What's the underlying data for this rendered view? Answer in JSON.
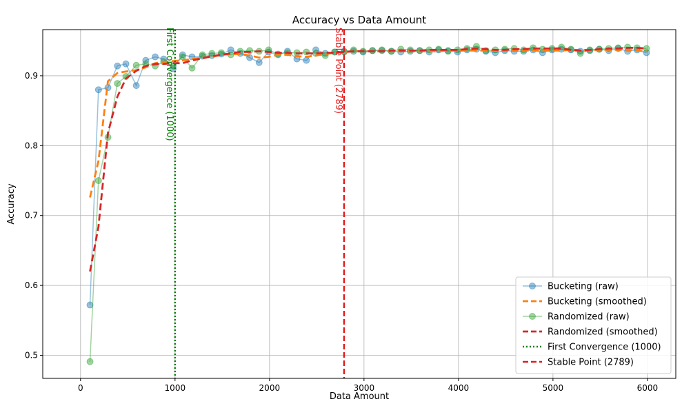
{
  "chart_data": {
    "type": "line",
    "title": "Accuracy vs Data Amount",
    "xlabel": "Data Amount",
    "ylabel": "Accuracy",
    "xlim": [
      -400,
      6300
    ],
    "ylim": [
      0.467,
      0.966
    ],
    "xticks": [
      0,
      1000,
      2000,
      3000,
      4000,
      5000,
      6000
    ],
    "yticks": [
      0.5,
      0.6,
      0.7,
      0.8,
      0.9
    ],
    "grid": true,
    "legend_position": "lower-right",
    "series": [
      {
        "name": "Bucketing (raw)",
        "style": "raw",
        "color": "#1f77b4",
        "x": [
          100,
          190,
          290,
          390,
          480,
          590,
          690,
          790,
          880,
          980,
          1080,
          1180,
          1290,
          1390,
          1490,
          1590,
          1690,
          1790,
          1890,
          1990,
          2090,
          2190,
          2290,
          2390,
          2490,
          2590,
          2690,
          2790,
          2890,
          2990,
          3090,
          3190,
          3290,
          3390,
          3490,
          3590,
          3690,
          3790,
          3890,
          3990,
          4090,
          4190,
          4290,
          4390,
          4490,
          4590,
          4690,
          4790,
          4890,
          4990,
          5090,
          5190,
          5290,
          5390,
          5490,
          5590,
          5690,
          5790,
          5890,
          5990
        ],
        "y": [
          0.572,
          0.88,
          0.883,
          0.914,
          0.917,
          0.886,
          0.922,
          0.927,
          0.924,
          0.91,
          0.93,
          0.927,
          0.928,
          0.929,
          0.931,
          0.937,
          0.932,
          0.926,
          0.919,
          0.934,
          0.93,
          0.935,
          0.924,
          0.922,
          0.937,
          0.932,
          0.934,
          0.935,
          0.935,
          0.934,
          0.936,
          0.936,
          0.935,
          0.934,
          0.935,
          0.936,
          0.934,
          0.937,
          0.936,
          0.934,
          0.937,
          0.938,
          0.935,
          0.933,
          0.936,
          0.935,
          0.935,
          0.937,
          0.933,
          0.937,
          0.938,
          0.937,
          0.935,
          0.936,
          0.938,
          0.936,
          0.939,
          0.935,
          0.937,
          0.933
        ]
      },
      {
        "name": "Bucketing (smoothed)",
        "style": "smoothed",
        "color": "#ff7f0e",
        "x": [
          100,
          190,
          290,
          390,
          480,
          590,
          690,
          790,
          880,
          980,
          1080,
          1180,
          1290,
          1390,
          1490,
          1590,
          1690,
          1790,
          1890,
          1990,
          2090,
          2190,
          2290,
          2390,
          2490,
          2590,
          2690,
          2790,
          2890,
          2990,
          3090,
          3190,
          3290,
          3390,
          3490,
          3590,
          3690,
          3790,
          3890,
          3990,
          4090,
          4190,
          4290,
          4390,
          4490,
          4590,
          4690,
          4790,
          4890,
          4990,
          5090,
          5190,
          5290,
          5390,
          5490,
          5590,
          5690,
          5790,
          5890,
          5990
        ],
        "y": [
          0.726,
          0.778,
          0.892,
          0.904,
          0.906,
          0.908,
          0.912,
          0.918,
          0.92,
          0.921,
          0.922,
          0.924,
          0.926,
          0.927,
          0.93,
          0.931,
          0.931,
          0.929,
          0.926,
          0.927,
          0.93,
          0.93,
          0.928,
          0.927,
          0.929,
          0.931,
          0.933,
          0.934,
          0.935,
          0.935,
          0.935,
          0.935,
          0.935,
          0.935,
          0.935,
          0.935,
          0.935,
          0.935,
          0.936,
          0.936,
          0.936,
          0.936,
          0.936,
          0.936,
          0.936,
          0.936,
          0.936,
          0.936,
          0.936,
          0.936,
          0.936,
          0.937,
          0.937,
          0.937,
          0.937,
          0.937,
          0.937,
          0.937,
          0.936,
          0.935
        ]
      },
      {
        "name": "Randomized (raw)",
        "style": "raw",
        "color": "#2ca02c",
        "x": [
          100,
          190,
          290,
          390,
          480,
          590,
          690,
          790,
          880,
          980,
          1080,
          1180,
          1290,
          1390,
          1490,
          1590,
          1690,
          1790,
          1890,
          1990,
          2090,
          2190,
          2290,
          2390,
          2490,
          2590,
          2690,
          2790,
          2890,
          2990,
          3090,
          3190,
          3290,
          3390,
          3490,
          3590,
          3690,
          3790,
          3890,
          3990,
          4090,
          4190,
          4290,
          4390,
          4490,
          4590,
          4690,
          4790,
          4890,
          4990,
          5090,
          5190,
          5290,
          5390,
          5490,
          5590,
          5690,
          5790,
          5890,
          5990
        ],
        "y": [
          0.491,
          0.75,
          0.812,
          0.889,
          0.899,
          0.915,
          0.917,
          0.914,
          0.92,
          0.914,
          0.927,
          0.911,
          0.93,
          0.932,
          0.933,
          0.93,
          0.935,
          0.936,
          0.935,
          0.937,
          0.931,
          0.933,
          0.933,
          0.934,
          0.932,
          0.929,
          0.934,
          0.934,
          0.937,
          0.935,
          0.936,
          0.937,
          0.935,
          0.938,
          0.937,
          0.936,
          0.937,
          0.938,
          0.935,
          0.937,
          0.939,
          0.942,
          0.936,
          0.937,
          0.938,
          0.939,
          0.937,
          0.94,
          0.938,
          0.939,
          0.941,
          0.938,
          0.932,
          0.937,
          0.938,
          0.939,
          0.94,
          0.941,
          0.94,
          0.939
        ]
      },
      {
        "name": "Randomized (smoothed)",
        "style": "smoothed",
        "color": "#d62728",
        "x": [
          100,
          190,
          290,
          390,
          480,
          590,
          690,
          790,
          880,
          980,
          1080,
          1180,
          1290,
          1390,
          1490,
          1590,
          1690,
          1790,
          1890,
          1990,
          2090,
          2190,
          2290,
          2390,
          2490,
          2590,
          2690,
          2790,
          2890,
          2990,
          3090,
          3190,
          3290,
          3390,
          3490,
          3590,
          3690,
          3790,
          3890,
          3990,
          4090,
          4190,
          4290,
          4390,
          4490,
          4590,
          4690,
          4790,
          4890,
          4990,
          5090,
          5190,
          5290,
          5390,
          5490,
          5590,
          5690,
          5790,
          5890,
          5990
        ],
        "y": [
          0.62,
          0.684,
          0.818,
          0.87,
          0.896,
          0.907,
          0.914,
          0.917,
          0.917,
          0.918,
          0.918,
          0.922,
          0.925,
          0.928,
          0.93,
          0.932,
          0.934,
          0.934,
          0.935,
          0.934,
          0.933,
          0.933,
          0.932,
          0.932,
          0.932,
          0.933,
          0.933,
          0.934,
          0.935,
          0.935,
          0.935,
          0.935,
          0.936,
          0.936,
          0.936,
          0.936,
          0.937,
          0.937,
          0.937,
          0.937,
          0.938,
          0.939,
          0.938,
          0.937,
          0.937,
          0.938,
          0.938,
          0.939,
          0.939,
          0.939,
          0.939,
          0.937,
          0.936,
          0.937,
          0.938,
          0.939,
          0.939,
          0.94,
          0.94,
          0.939
        ]
      }
    ],
    "vlines": [
      {
        "name": "First Convergence (1000)",
        "x": 1000,
        "color": "#008000",
        "dash": "dotted",
        "label": "First Convergence (1000)"
      },
      {
        "name": "Stable Point (2789)",
        "x": 2789,
        "color": "#e31a1c",
        "dash": "dashed",
        "label": "Stable Point (2789)"
      }
    ]
  }
}
